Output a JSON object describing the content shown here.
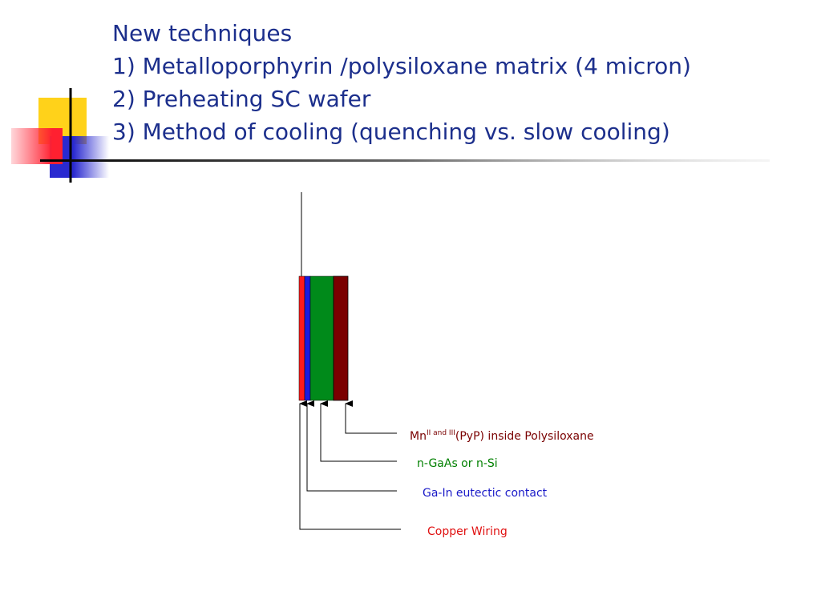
{
  "title": {
    "lines": [
      "New techniques",
      "1) Metalloporphyrin /polysiloxane matrix (4 micron)",
      "2) Preheating SC wafer",
      "3) Method of cooling (quenching vs. slow cooling)"
    ]
  },
  "diagram": {
    "labels": [
      {
        "parts": [
          "Mn",
          "II and III",
          "(PyP) inside Polysiloxane"
        ]
      },
      {
        "text": "n-GaAs or n-Si"
      },
      {
        "text": "Ga-In eutectic contact"
      },
      {
        "text": "Copper Wiring"
      }
    ]
  }
}
